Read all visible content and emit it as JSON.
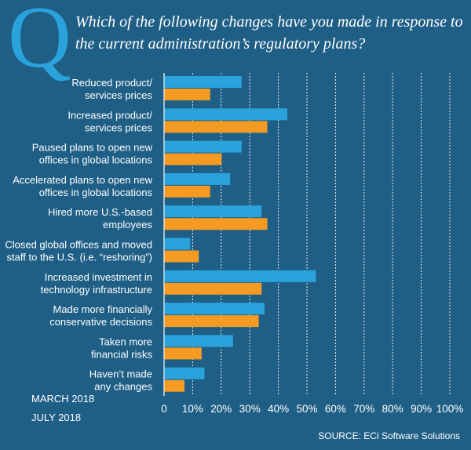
{
  "header": {
    "q_letter": "Q",
    "question": "Which of the following changes have you made in response to the current administration’s regulatory plans?"
  },
  "legend": {
    "march": "MARCH 2018",
    "july": "JULY 2018"
  },
  "source": "SOURCE: ECi Software Solutions",
  "colors": {
    "background": "#1f5f86",
    "march": "#2aa3dc",
    "july": "#f59a23",
    "grid": "#ffffff"
  },
  "chart_data": {
    "type": "bar",
    "orientation": "horizontal",
    "title": "Which of the following changes have you made in response to the current administration’s regulatory plans?",
    "categories": [
      [
        "Reduced product/",
        "services prices"
      ],
      [
        "Increased product/",
        "services prices"
      ],
      [
        "Paused plans to open new",
        "offices in global locations"
      ],
      [
        "Accelerated plans to open new",
        "offices in global locations"
      ],
      [
        "Hired more U.S.-based",
        "employees"
      ],
      [
        "Closed global offices and moved",
        "staff to the U.S. (i.e. “reshoring”)"
      ],
      [
        "Increased investment in",
        "technology infrastructure"
      ],
      [
        "Made more financially",
        "conservative decisions"
      ],
      [
        "Taken more",
        "financial risks"
      ],
      [
        "Haven’t made",
        "any changes"
      ]
    ],
    "series": [
      {
        "name": "MARCH 2018",
        "values": [
          27,
          43,
          27,
          23,
          34,
          9,
          53,
          35,
          24,
          14
        ]
      },
      {
        "name": "JULY 2018",
        "values": [
          16,
          36,
          20,
          16,
          36,
          12,
          34,
          33,
          13,
          7
        ]
      }
    ],
    "xlim": [
      0,
      100
    ],
    "xticks": [
      "0",
      "10%",
      "20%",
      "30%",
      "40%",
      "50%",
      "60%",
      "70%",
      "80%",
      "90%",
      "100%"
    ],
    "xlabel": "",
    "ylabel": "",
    "grid": "vertical dashed"
  }
}
